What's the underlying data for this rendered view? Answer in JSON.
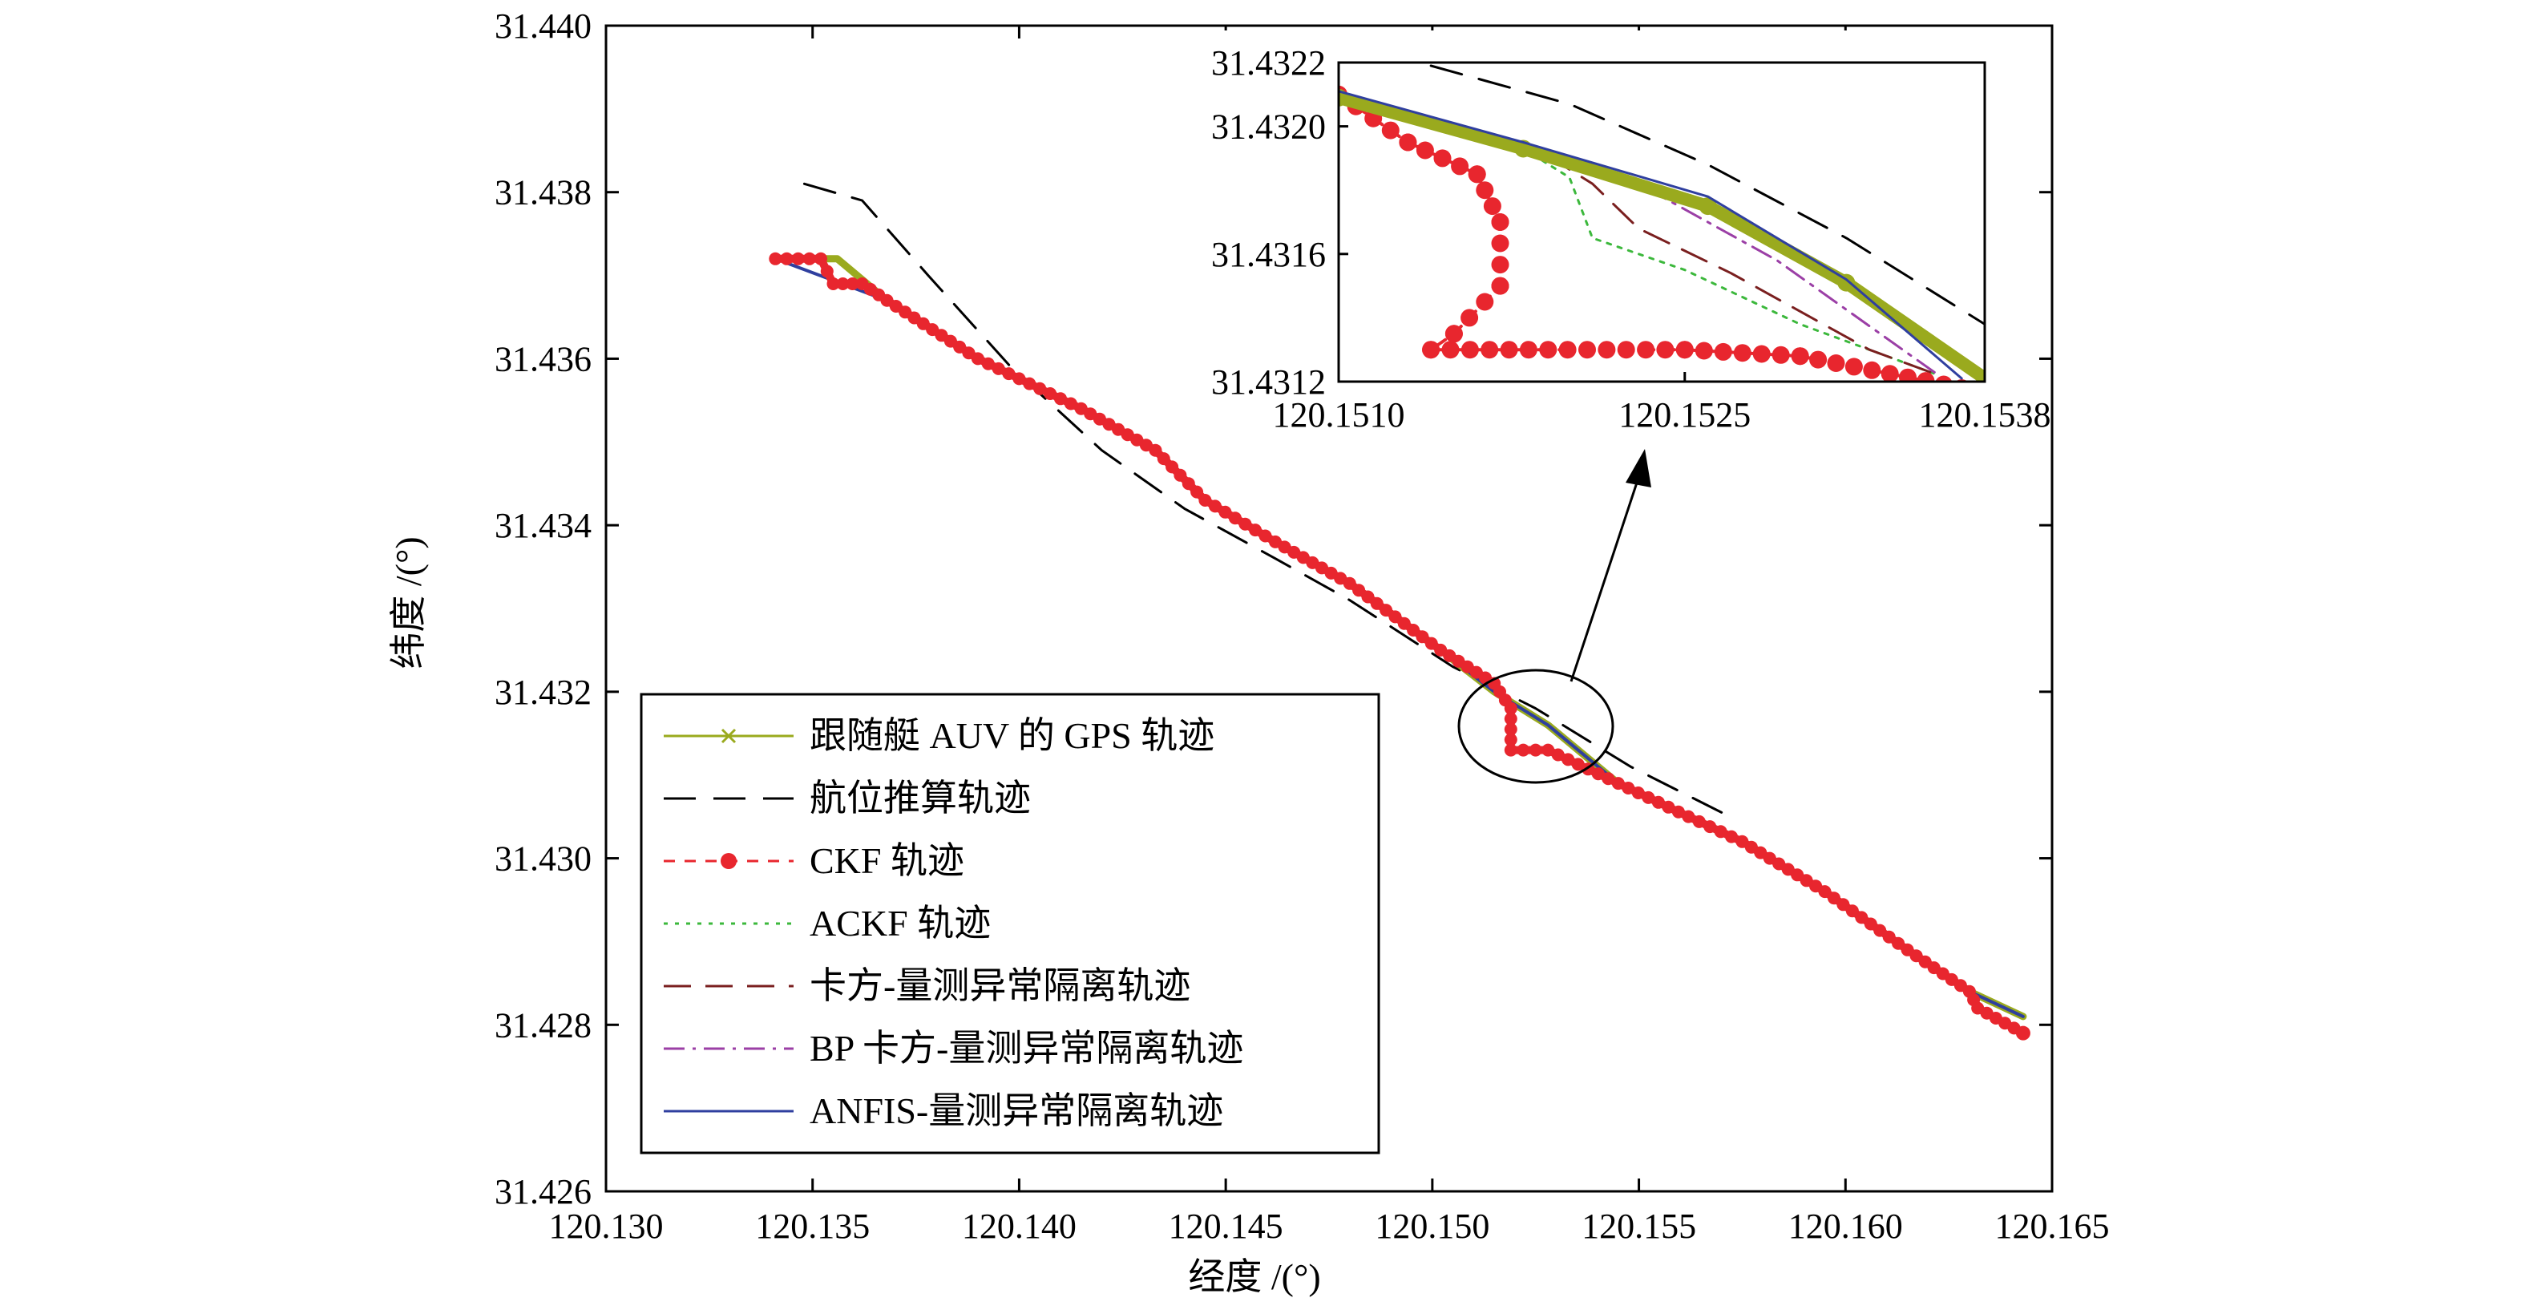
{
  "chart_data": {
    "type": "line",
    "title": "",
    "xlabel": "经度 /(°)",
    "ylabel": "纬度 /(°)",
    "xlim": [
      120.13,
      120.165
    ],
    "ylim": [
      31.426,
      31.44
    ],
    "xticks": [
      "120.130",
      "120.135",
      "120.140",
      "120.145",
      "120.150",
      "120.155",
      "120.160",
      "120.165"
    ],
    "yticks": [
      "31.426",
      "31.428",
      "31.430",
      "31.432",
      "31.434",
      "31.436",
      "31.438",
      "31.440"
    ],
    "grid": false,
    "legend_position": "bottom-left",
    "colors": {
      "gps": "#9aaa1e",
      "dr": "#000000",
      "ckf": "#e8262e",
      "ackf": "#3cb83c",
      "kf_iso": "#7a1f1f",
      "bp_iso": "#9b3fa6",
      "anfis_iso": "#2f3f9f"
    },
    "series": [
      {
        "name": "跟随艇 AUV 的 GPS 轨迹",
        "style": "solid-x",
        "x": [
          120.1341,
          120.1356,
          120.1368,
          120.139,
          120.1415,
          120.1433,
          120.1445,
          120.1462,
          120.148,
          120.1502,
          120.1515,
          120.1528,
          120.1545,
          120.1562,
          120.1575,
          120.1595,
          120.1615,
          120.163,
          120.1643
        ],
        "y": [
          31.4372,
          31.4372,
          31.4367,
          31.436,
          31.4354,
          31.4349,
          31.4343,
          31.4338,
          31.4333,
          31.4325,
          31.432,
          31.4316,
          31.4309,
          31.4305,
          31.4302,
          31.4296,
          31.4289,
          31.4284,
          31.4281
        ]
      },
      {
        "name": "航位推算轨迹",
        "style": "dashed",
        "x": [
          120.1348,
          120.1362,
          120.1378,
          120.1398,
          120.142,
          120.144,
          120.1462,
          120.148,
          120.1505,
          120.1525,
          120.1548,
          120.1572
        ],
        "y": [
          31.4381,
          31.4379,
          31.437,
          31.4359,
          31.4349,
          31.4342,
          31.4336,
          31.4331,
          31.4323,
          31.4318,
          31.4311,
          31.4305
        ]
      },
      {
        "name": "CKF 轨迹",
        "style": "dashed-dot",
        "x": [
          120.1341,
          120.1352,
          120.1355,
          120.1362,
          120.1368,
          120.139,
          120.1415,
          120.1433,
          120.1445,
          120.1462,
          120.148,
          120.1502,
          120.1515,
          120.1519,
          120.1519,
          120.1528,
          120.1545,
          120.1562,
          120.1575,
          120.1595,
          120.1615,
          120.163,
          120.1632,
          120.1643
        ],
        "y": [
          31.4372,
          31.4372,
          31.4369,
          31.4369,
          31.4367,
          31.436,
          31.4354,
          31.4349,
          31.4343,
          31.4338,
          31.4333,
          31.4325,
          31.4321,
          31.4318,
          31.4313,
          31.4313,
          31.4309,
          31.4305,
          31.4302,
          31.4296,
          31.4289,
          31.4284,
          31.4282,
          31.4279
        ]
      },
      {
        "name": "ACKF 轨迹",
        "style": "dotted",
        "x": [
          120.1341,
          120.1368,
          120.139,
          120.1415,
          120.1433,
          120.1445,
          120.1462,
          120.148,
          120.1502,
          120.1515,
          120.1528,
          120.1545,
          120.1562,
          120.1575,
          120.1595,
          120.1615,
          120.163,
          120.1643
        ],
        "y": [
          31.4372,
          31.4367,
          31.436,
          31.4354,
          31.4349,
          31.4343,
          31.4338,
          31.4333,
          31.4325,
          31.432,
          31.4316,
          31.4309,
          31.4305,
          31.4302,
          31.4296,
          31.4289,
          31.4284,
          31.4281
        ]
      },
      {
        "name": "卡方-量测异常隔离轨迹",
        "style": "long-dash",
        "x": [
          120.1341,
          120.1368,
          120.139,
          120.1415,
          120.1433,
          120.1445,
          120.1462,
          120.148,
          120.1502,
          120.1515,
          120.1528,
          120.1545,
          120.1562,
          120.1575,
          120.1595,
          120.1615,
          120.163,
          120.1643
        ],
        "y": [
          31.4372,
          31.4367,
          31.436,
          31.4354,
          31.4349,
          31.4343,
          31.4338,
          31.4333,
          31.4325,
          31.432,
          31.4316,
          31.4309,
          31.4305,
          31.4302,
          31.4296,
          31.4289,
          31.4284,
          31.4281
        ]
      },
      {
        "name": "BP 卡方-量测异常隔离轨迹",
        "style": "dash-dot",
        "x": [
          120.1341,
          120.1368,
          120.139,
          120.1415,
          120.1433,
          120.1445,
          120.1462,
          120.148,
          120.1502,
          120.1515,
          120.1528,
          120.1545,
          120.1562,
          120.1575,
          120.1595,
          120.1615,
          120.163,
          120.1643
        ],
        "y": [
          31.4372,
          31.4367,
          31.436,
          31.4354,
          31.4349,
          31.4343,
          31.4338,
          31.4333,
          31.4325,
          31.432,
          31.4316,
          31.4309,
          31.4305,
          31.4302,
          31.4296,
          31.4289,
          31.4284,
          31.4281
        ]
      },
      {
        "name": "ANFIS-量测异常隔离轨迹",
        "style": "solid",
        "x": [
          120.1341,
          120.1368,
          120.139,
          120.1415,
          120.1433,
          120.1445,
          120.1462,
          120.148,
          120.1502,
          120.1515,
          120.1528,
          120.1545,
          120.1562,
          120.1575,
          120.1595,
          120.1615,
          120.163,
          120.1643
        ],
        "y": [
          31.4372,
          31.4367,
          31.436,
          31.4354,
          31.4349,
          31.4343,
          31.4338,
          31.4333,
          31.4325,
          31.432,
          31.4316,
          31.4309,
          31.4305,
          31.4302,
          31.4296,
          31.4289,
          31.4284,
          31.4281
        ]
      }
    ],
    "inset": {
      "xlim": [
        120.151,
        120.1538
      ],
      "ylim": [
        31.4312,
        31.4322
      ],
      "xticks": [
        "120.1510",
        "120.1525",
        "120.1538"
      ],
      "yticks": [
        "31.4312",
        "31.4316",
        "31.4320",
        "31.4322"
      ],
      "series": [
        {
          "name": "跟随艇 AUV 的 GPS 轨迹",
          "x": [
            120.151,
            120.1518,
            120.1526,
            120.1532,
            120.1538
          ],
          "y": [
            31.43209,
            31.43193,
            31.43175,
            31.43151,
            31.43121
          ]
        },
        {
          "name": "航位推算轨迹",
          "x": [
            120.1514,
            120.152,
            120.1526,
            120.1532,
            120.1538
          ],
          "y": [
            31.43219,
            31.43207,
            31.43188,
            31.43165,
            31.43138
          ]
        },
        {
          "name": "CKF 轨迹",
          "x": [
            120.151,
            120.1513,
            120.1516,
            120.1517,
            120.1517,
            120.1515,
            120.1514,
            120.1525,
            120.153,
            120.1537
          ],
          "y": [
            31.4321,
            31.43195,
            31.43185,
            31.4317,
            31.4315,
            31.43135,
            31.4313,
            31.4313,
            31.43128,
            31.43118
          ]
        },
        {
          "name": "ACKF 轨迹",
          "x": [
            120.1518,
            120.152,
            120.1521,
            120.1525,
            120.153,
            120.1536
          ],
          "y": [
            31.43193,
            31.43184,
            31.43165,
            31.43155,
            31.43138,
            31.43122
          ]
        },
        {
          "name": "卡方-量测异常隔离轨迹",
          "x": [
            120.1519,
            120.1521,
            120.1523,
            120.1527,
            120.1533,
            120.1536
          ],
          "y": [
            31.43191,
            31.43182,
            31.43168,
            31.43154,
            31.4313,
            31.43122
          ]
        },
        {
          "name": "BP 卡方-量测异常隔离轨迹",
          "x": [
            120.152,
            120.1524,
            120.1529,
            120.1536
          ],
          "y": [
            31.43187,
            31.43178,
            31.43158,
            31.43122
          ]
        },
        {
          "name": "ANFIS-量测异常隔离轨迹",
          "x": [
            120.151,
            120.1518,
            120.1526,
            120.1532,
            120.1537
          ],
          "y": [
            31.43211,
            31.43195,
            31.43178,
            31.43152,
            31.43121
          ]
        }
      ]
    }
  }
}
